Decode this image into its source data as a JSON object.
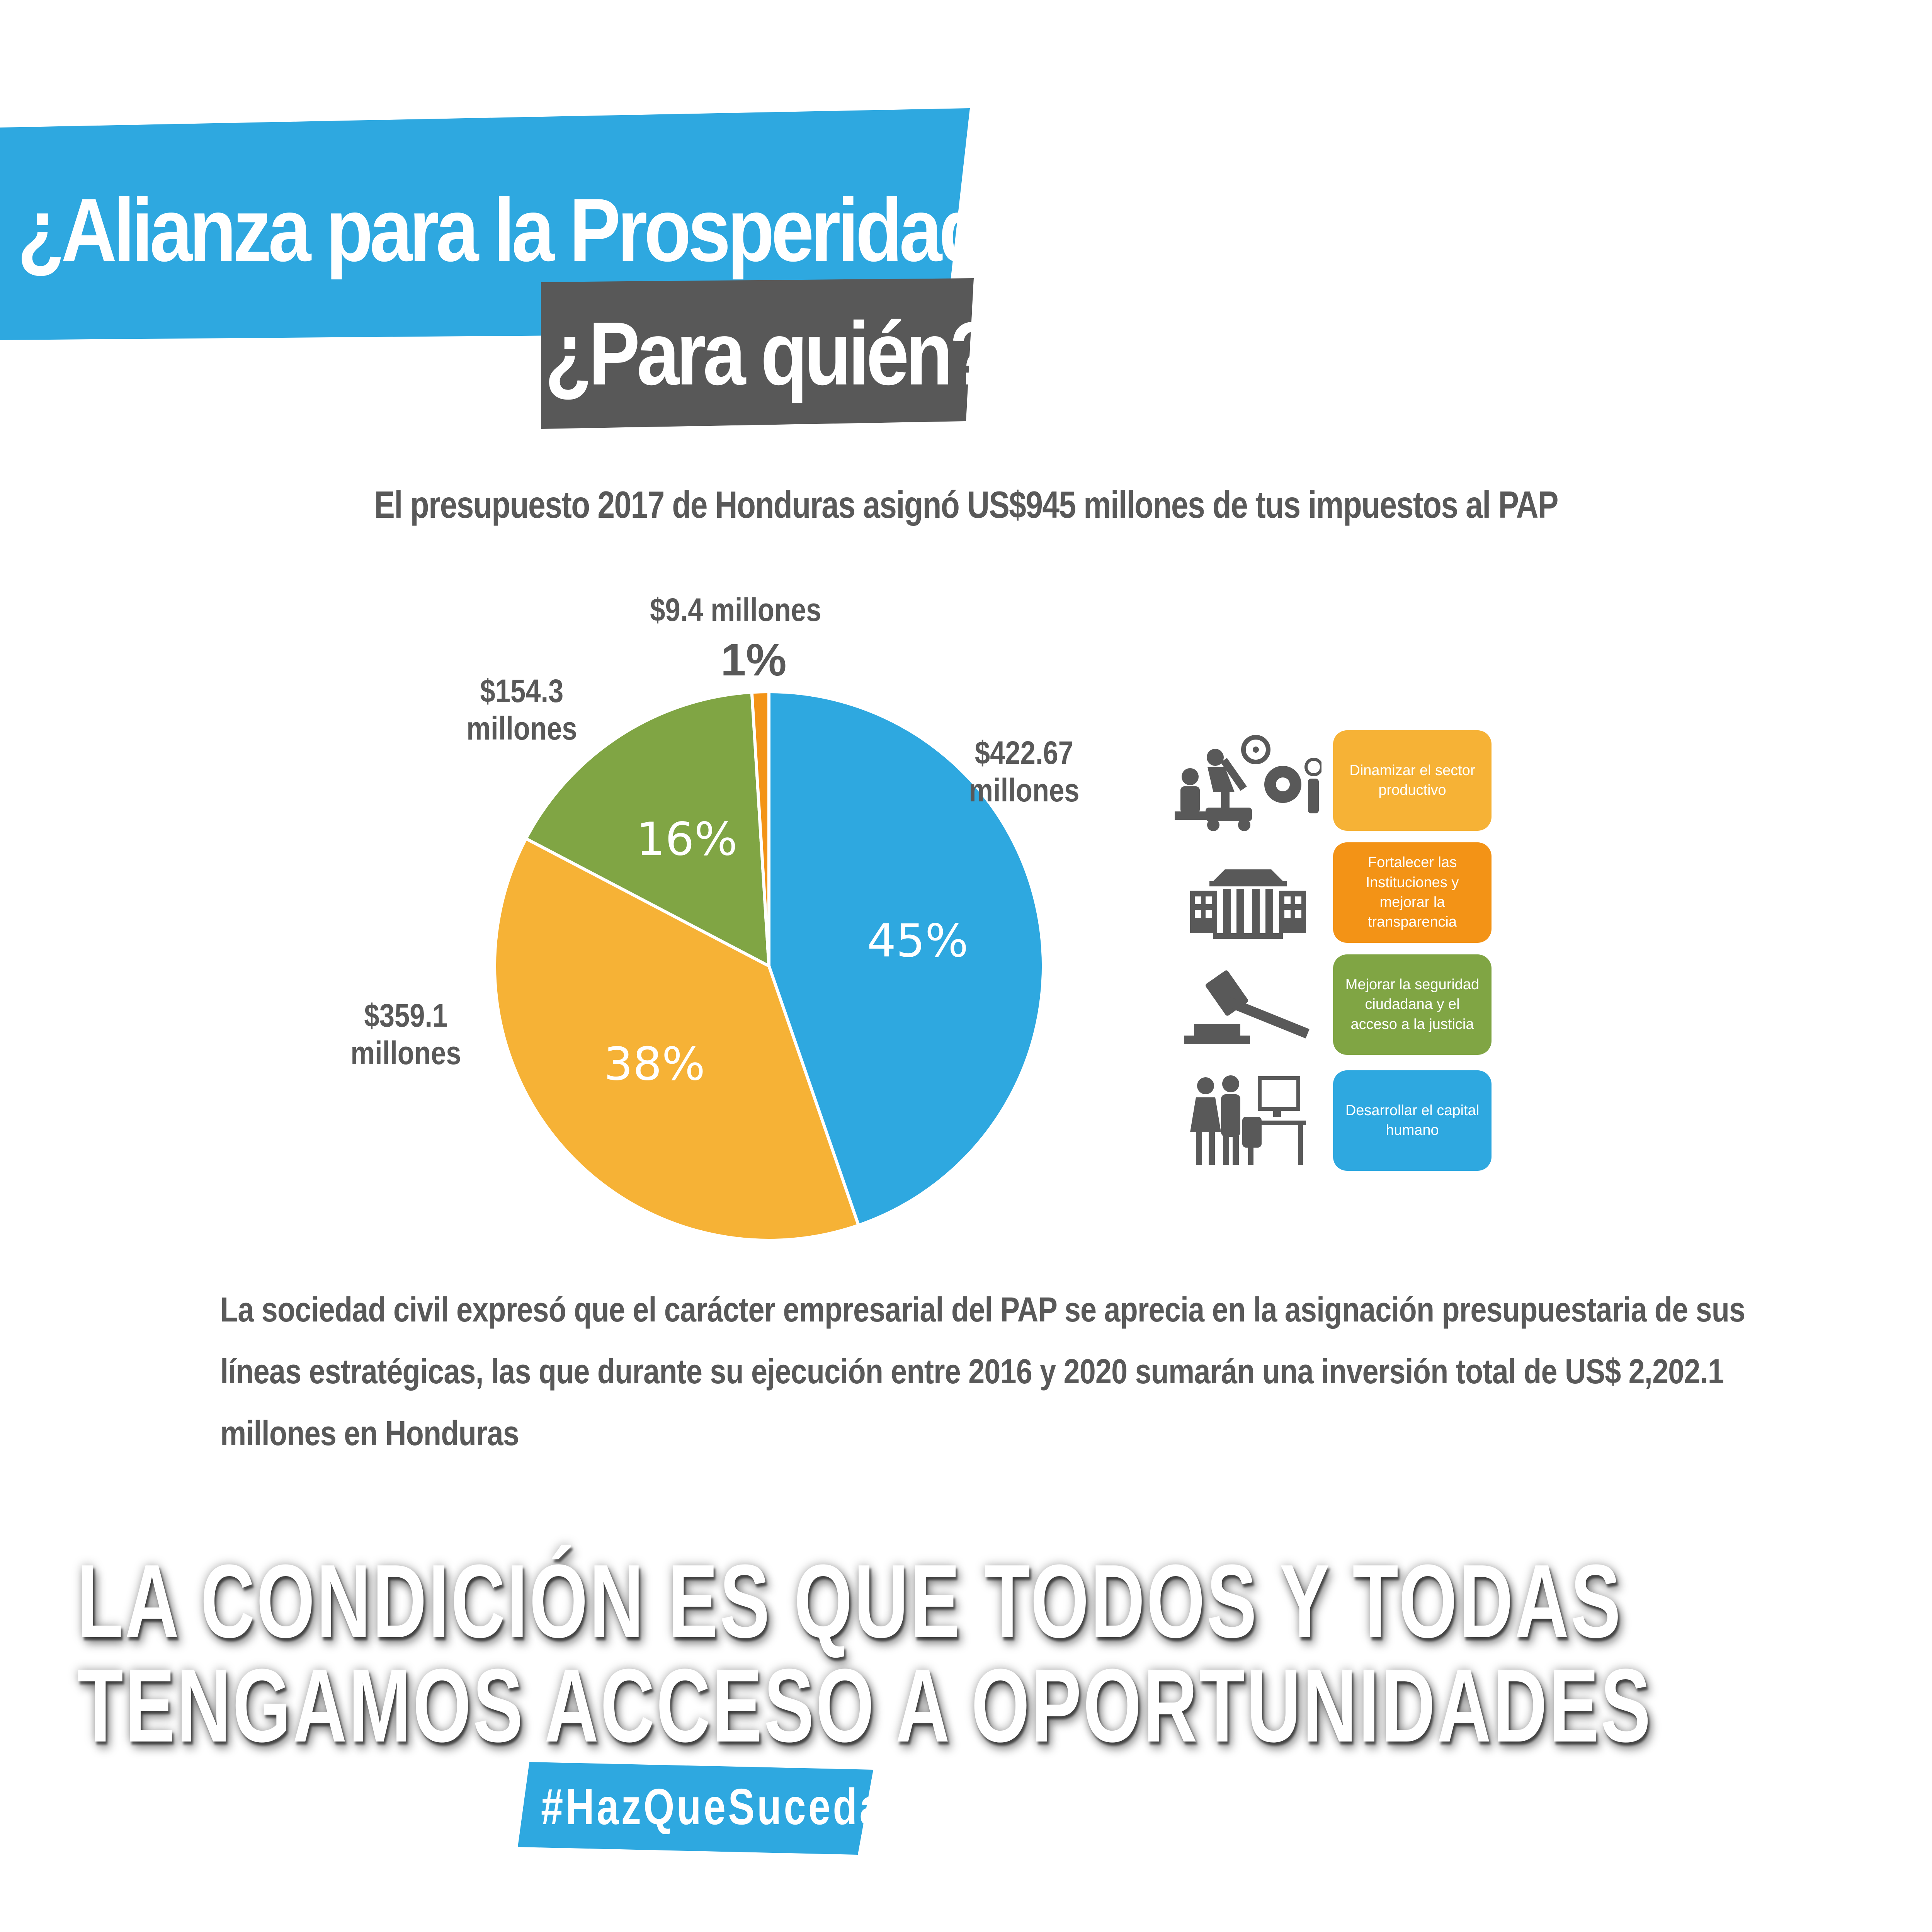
{
  "header": {
    "title": "¿Alianza para la Prosperidad?",
    "subtitle": "¿Para quién?"
  },
  "chart_intro": "El presupuesto 2017 de Honduras asignó US$945 millones de tus impuestos al PAP",
  "chart_data": {
    "type": "pie",
    "title": "El presupuesto 2017 de Honduras asignó US$945 millones de tus impuestos al PAP",
    "slices": [
      {
        "name": "Desarrollar el capital humano",
        "value": 422.67,
        "percent_label": "45%",
        "amount_label": [
          "$422.67",
          "millones"
        ],
        "color": "#2ea8e0"
      },
      {
        "name": "Dinamizar el sector productivo",
        "value": 359.1,
        "percent_label": "38%",
        "amount_label": [
          "$359.1",
          "millones"
        ],
        "color": "#f6b236"
      },
      {
        "name": "Mejorar la seguridad ciudadana y el acceso a la justicia",
        "value": 154.3,
        "percent_label": "16%",
        "amount_label": [
          "$154.3",
          "millones"
        ],
        "color": "#80a544"
      },
      {
        "name": "Fortalecer las Instituciones y mejorar la transparencia",
        "value": 9.4,
        "percent_label": "1%",
        "amount_label": [
          "$9.4 millones"
        ],
        "color": "#f39316"
      }
    ],
    "unit": "millones US$",
    "legend_position": "right"
  },
  "legend": [
    {
      "label": "Dinamizar el sector productivo",
      "icon": "workers-machinery-icon",
      "color": "#f6b236"
    },
    {
      "label": "Fortalecer las Instituciones y mejorar la transparencia",
      "icon": "government-building-icon",
      "color": "#f39316"
    },
    {
      "label": "Mejorar la seguridad ciudadana y el acceso a la justicia",
      "icon": "gavel-icon",
      "color": "#80a544"
    },
    {
      "label": "Desarrollar el capital humano",
      "icon": "people-computer-icon",
      "color": "#2ea8e0"
    }
  ],
  "paragraph": "La sociedad civil expresó que el carácter empresarial del PAP se aprecia en la asignación presupuestaria de sus líneas estratégicas, las que durante su ejecución entre 2016 y 2020 sumarán una inversión total de US$ 2,202.1 millones en Honduras",
  "slogan": {
    "line1": "LA CONDICIÓN ES QUE TODOS Y TODAS",
    "line2": "TENGAMOS ACCESO A OPORTUNIDADES"
  },
  "hashtag": "#HazQueSuceda",
  "colors": {
    "blue": "#2ea8e0",
    "dark_gray": "#585858",
    "text_gray": "#595959"
  }
}
